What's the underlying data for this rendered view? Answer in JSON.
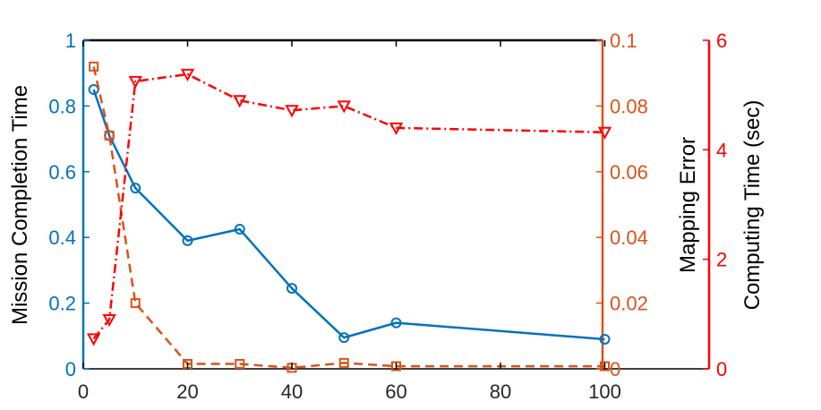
{
  "chart_data": {
    "type": "line",
    "title": "",
    "xlabel": "",
    "xlim": [
      0,
      120
    ],
    "x_ticks": [
      0,
      20,
      40,
      60,
      80,
      100
    ],
    "x_tick_labels": [
      "0",
      "20",
      "40",
      "60",
      "80",
      "100"
    ],
    "grid": false,
    "legend": "none",
    "axes": {
      "left": {
        "label": "Mission Completion Time",
        "ylim": [
          0,
          1
        ],
        "ticks": [
          0,
          0.2,
          0.4,
          0.6,
          0.8,
          1
        ],
        "tick_labels": [
          "0",
          "0.2",
          "0.4",
          "0.6",
          "0.8",
          "1"
        ],
        "color": "#0072BD"
      },
      "right_inner": {
        "label": "Mapping Error",
        "ylim": [
          0,
          0.1
        ],
        "ticks": [
          0,
          0.02,
          0.04,
          0.06,
          0.08,
          0.1
        ],
        "tick_labels": [
          "0",
          "0.02",
          "0.04",
          "0.06",
          "0.08",
          "0.1"
        ],
        "color": "#D95319"
      },
      "right_outer": {
        "label": "Computing Time (sec)",
        "ylim": [
          0,
          6
        ],
        "ticks": [
          0,
          2,
          4,
          6
        ],
        "tick_labels": [
          "0",
          "2",
          "4",
          "6"
        ],
        "color": "#FF0000"
      }
    },
    "series": [
      {
        "axis": "left",
        "color": "#0072BD",
        "line_style": "solid",
        "marker": "circle",
        "x": [
          2,
          5,
          10,
          20,
          30,
          40,
          50,
          60,
          100
        ],
        "values": [
          0.85,
          0.71,
          0.55,
          0.39,
          0.425,
          0.245,
          0.095,
          0.14,
          0.09
        ]
      },
      {
        "axis": "right_inner",
        "color": "#D95319",
        "line_style": "dashed",
        "marker": "square",
        "x": [
          2,
          5,
          10,
          20,
          30,
          40,
          50,
          60,
          100
        ],
        "values": [
          0.092,
          0.071,
          0.02,
          0.0015,
          0.0015,
          0.0003,
          0.0018,
          0.0008,
          0.0008
        ]
      },
      {
        "axis": "right_outer",
        "color": "#FF0000",
        "line_style": "dashdot",
        "marker": "triangle-down",
        "x": [
          2,
          5,
          10,
          20,
          30,
          40,
          50,
          60,
          100
        ],
        "values": [
          0.55,
          0.9,
          5.25,
          5.38,
          4.9,
          4.72,
          4.8,
          4.4,
          4.32
        ]
      }
    ]
  }
}
